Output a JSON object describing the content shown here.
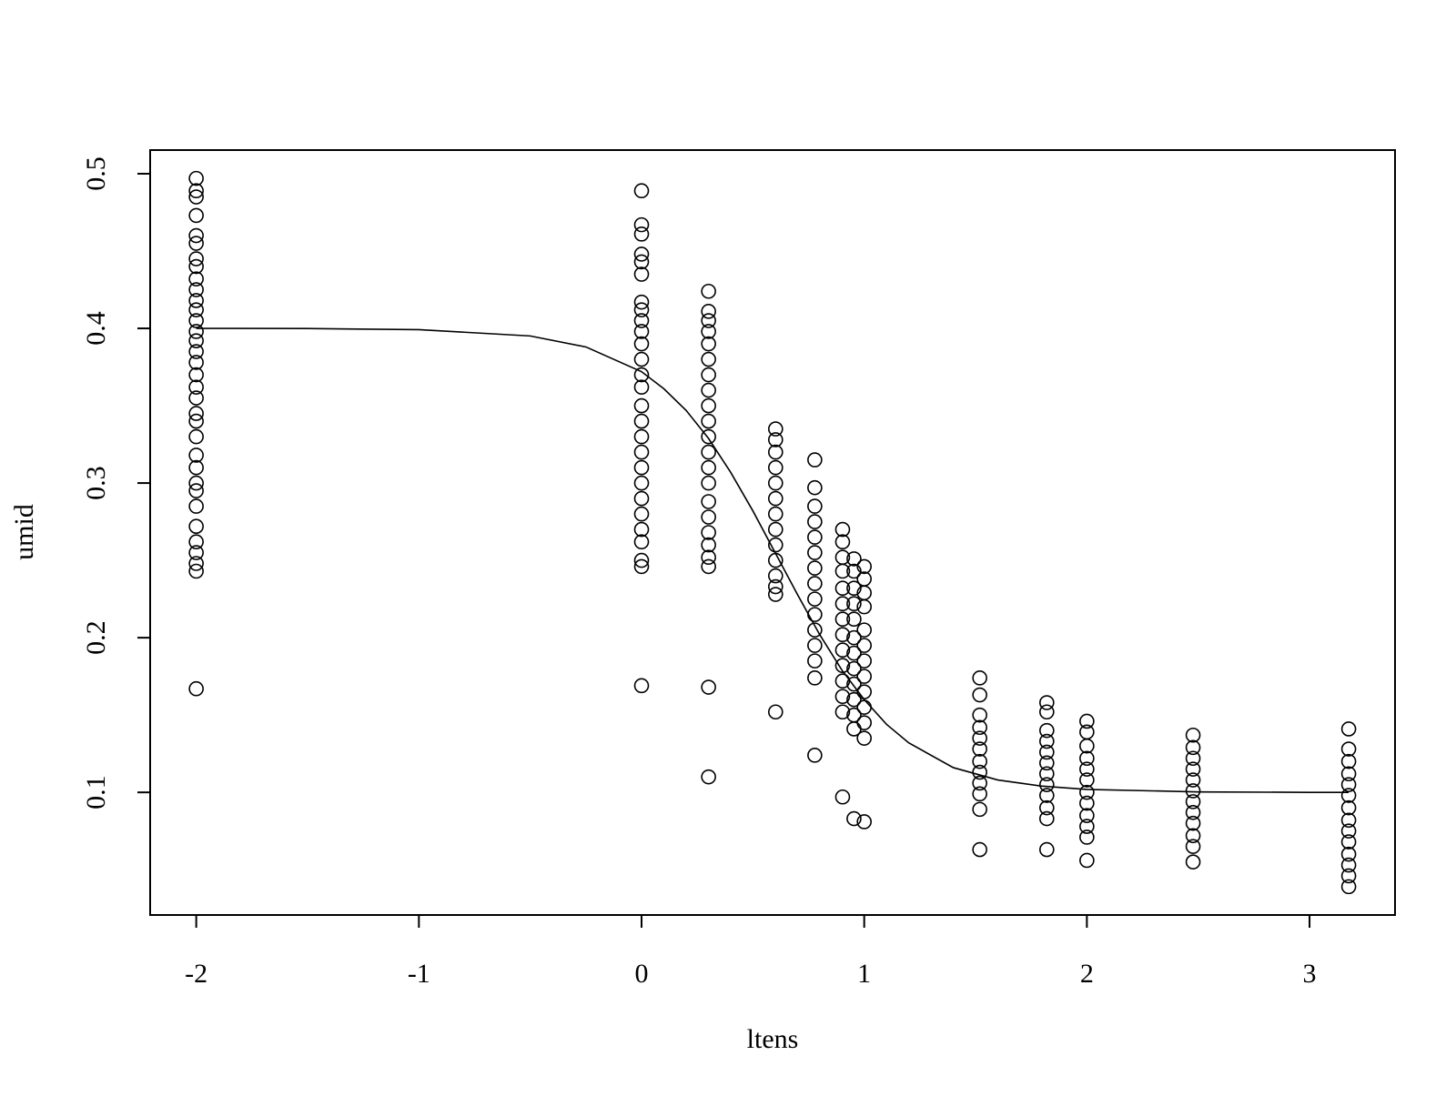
{
  "chart_data": {
    "type": "scatter",
    "xlabel": "ltens",
    "ylabel": "umid",
    "color": "#000000",
    "xlim": [
      -2.207,
      3.384
    ],
    "ylim": [
      0.0207,
      0.5153
    ],
    "xticks": [
      -2,
      -1,
      0,
      1,
      2,
      3
    ],
    "yticks": [
      0.1,
      0.2,
      0.3,
      0.4,
      0.5
    ],
    "points": [
      {
        "x": -2,
        "values": [
          0.497,
          0.489,
          0.485,
          0.473,
          0.46,
          0.455,
          0.445,
          0.44,
          0.432,
          0.425,
          0.418,
          0.412,
          0.405,
          0.398,
          0.392,
          0.385,
          0.378,
          0.37,
          0.362,
          0.355,
          0.345,
          0.34,
          0.33,
          0.318,
          0.31,
          0.3,
          0.295,
          0.285,
          0.272,
          0.262,
          0.255,
          0.248,
          0.243,
          0.167
        ]
      },
      {
        "x": 0,
        "values": [
          0.489,
          0.467,
          0.461,
          0.448,
          0.443,
          0.435,
          0.417,
          0.412,
          0.405,
          0.398,
          0.39,
          0.38,
          0.37,
          0.362,
          0.35,
          0.34,
          0.33,
          0.32,
          0.31,
          0.3,
          0.29,
          0.28,
          0.27,
          0.262,
          0.25,
          0.246,
          0.169
        ]
      },
      {
        "x": 0.301,
        "values": [
          0.424,
          0.411,
          0.405,
          0.398,
          0.39,
          0.38,
          0.37,
          0.36,
          0.35,
          0.34,
          0.33,
          0.32,
          0.31,
          0.3,
          0.288,
          0.278,
          0.268,
          0.26,
          0.252,
          0.246,
          0.168,
          0.11
        ]
      },
      {
        "x": 0.602,
        "values": [
          0.335,
          0.328,
          0.32,
          0.31,
          0.3,
          0.29,
          0.28,
          0.27,
          0.26,
          0.25,
          0.24,
          0.233,
          0.228,
          0.152
        ]
      },
      {
        "x": 0.778,
        "values": [
          0.315,
          0.297,
          0.285,
          0.275,
          0.265,
          0.255,
          0.245,
          0.235,
          0.225,
          0.215,
          0.205,
          0.195,
          0.185,
          0.174,
          0.124
        ]
      },
      {
        "x": 0.903,
        "values": [
          0.27,
          0.262,
          0.252,
          0.243,
          0.232,
          0.222,
          0.212,
          0.202,
          0.192,
          0.182,
          0.172,
          0.162,
          0.152,
          0.097
        ]
      },
      {
        "x": 0.954,
        "values": [
          0.251,
          0.243,
          0.232,
          0.222,
          0.212,
          0.2,
          0.19,
          0.18,
          0.17,
          0.16,
          0.15,
          0.141,
          0.083
        ]
      },
      {
        "x": 1,
        "values": [
          0.246,
          0.238,
          0.229,
          0.22,
          0.205,
          0.195,
          0.185,
          0.175,
          0.165,
          0.155,
          0.145,
          0.135,
          0.081
        ]
      },
      {
        "x": 1.519,
        "values": [
          0.174,
          0.163,
          0.15,
          0.142,
          0.135,
          0.128,
          0.12,
          0.113,
          0.106,
          0.099,
          0.089,
          0.063
        ]
      },
      {
        "x": 1.82,
        "values": [
          0.158,
          0.152,
          0.14,
          0.133,
          0.126,
          0.119,
          0.112,
          0.105,
          0.098,
          0.09,
          0.083,
          0.063
        ]
      },
      {
        "x": 2,
        "values": [
          0.146,
          0.139,
          0.13,
          0.122,
          0.115,
          0.108,
          0.1,
          0.093,
          0.085,
          0.078,
          0.071,
          0.056
        ]
      },
      {
        "x": 2.477,
        "values": [
          0.137,
          0.129,
          0.122,
          0.115,
          0.108,
          0.101,
          0.094,
          0.087,
          0.08,
          0.072,
          0.065,
          0.055
        ]
      },
      {
        "x": 3.176,
        "values": [
          0.141,
          0.128,
          0.12,
          0.112,
          0.105,
          0.098,
          0.09,
          0.082,
          0.075,
          0.068,
          0.06,
          0.053,
          0.046,
          0.039
        ]
      }
    ],
    "curve": {
      "x": [
        -2,
        -1.5,
        -1,
        -0.5,
        -0.25,
        0,
        0.1,
        0.2,
        0.3,
        0.4,
        0.5,
        0.6,
        0.7,
        0.8,
        0.9,
        1,
        1.1,
        1.2,
        1.4,
        1.6,
        1.8,
        2,
        2.5,
        3,
        3.176
      ],
      "values": [
        0.4,
        0.3999,
        0.3992,
        0.3951,
        0.388,
        0.372,
        0.361,
        0.347,
        0.329,
        0.307,
        0.282,
        0.255,
        0.228,
        0.202,
        0.179,
        0.16,
        0.144,
        0.132,
        0.116,
        0.108,
        0.104,
        0.1019,
        0.1003,
        0.1,
        0.1
      ]
    }
  }
}
